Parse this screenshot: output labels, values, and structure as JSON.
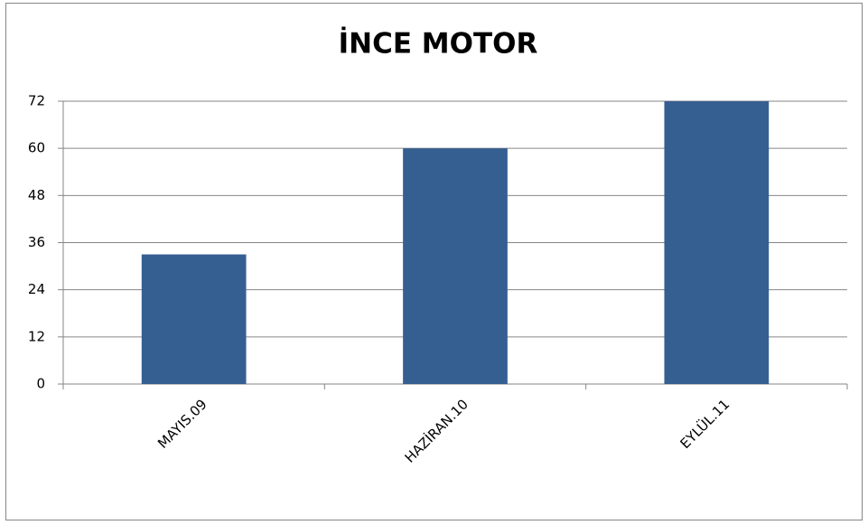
{
  "chart_data": {
    "type": "bar",
    "title": "İNCE MOTOR",
    "categories": [
      "MAYIS.09",
      "HAZİRAN.10",
      "EYLÜL.11"
    ],
    "values": [
      33,
      60,
      72
    ],
    "color": "#365f91",
    "ylim": [
      0,
      72
    ],
    "yticks": [
      0,
      12,
      24,
      36,
      48,
      60,
      72
    ],
    "grid": true
  }
}
